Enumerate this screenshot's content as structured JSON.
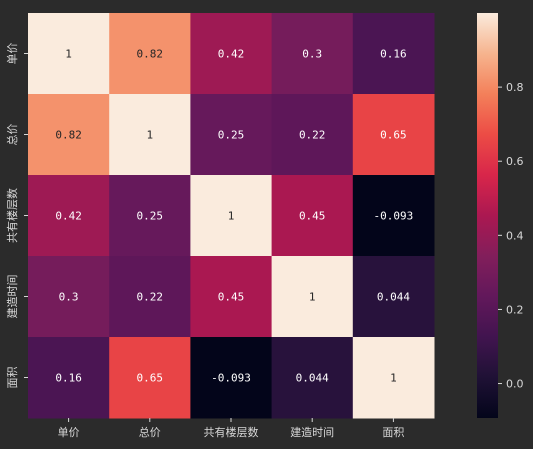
{
  "chart_data": {
    "type": "heatmap",
    "title": "",
    "xlabel": "",
    "ylabel": "",
    "categories": [
      "单价",
      "总价",
      "共有楼层数",
      "建造时间",
      "面积"
    ],
    "values": [
      [
        1,
        0.82,
        0.42,
        0.3,
        0.16
      ],
      [
        0.82,
        1,
        0.25,
        0.22,
        0.65
      ],
      [
        0.42,
        0.25,
        1,
        0.45,
        -0.093
      ],
      [
        0.3,
        0.22,
        0.45,
        1,
        0.044
      ],
      [
        0.16,
        0.65,
        -0.093,
        0.044,
        1
      ]
    ],
    "value_labels": [
      [
        "1",
        "0.82",
        "0.42",
        "0.3",
        "0.16"
      ],
      [
        "0.82",
        "1",
        "0.25",
        "0.22",
        "0.65"
      ],
      [
        "0.42",
        "0.25",
        "1",
        "0.45",
        "-0.093"
      ],
      [
        "0.3",
        "0.22",
        "0.45",
        "1",
        "0.044"
      ],
      [
        "0.16",
        "0.65",
        "-0.093",
        "0.044",
        "1"
      ]
    ],
    "colormap": "rocket",
    "colorbar": {
      "range": [
        -0.093,
        1
      ],
      "ticks": [
        0.0,
        0.2,
        0.4,
        0.6,
        0.8
      ],
      "tick_labels": [
        "0.0",
        "0.2",
        "0.4",
        "0.6",
        "0.8"
      ]
    }
  }
}
